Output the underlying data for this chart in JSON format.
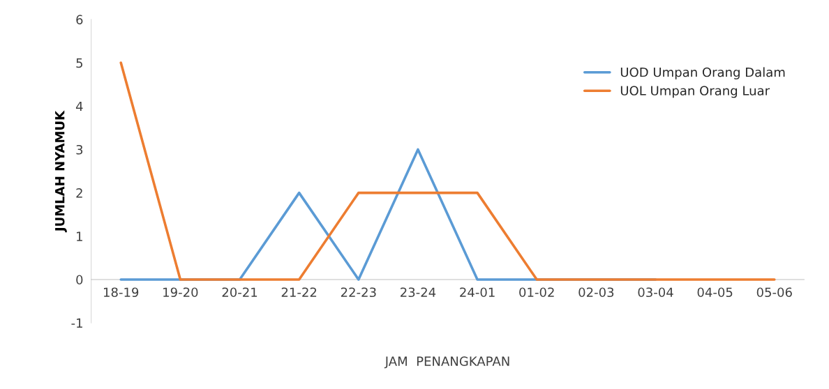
{
  "chart_data": {
    "type": "line",
    "xlabel": "JAM  PENANGKAPAN",
    "ylabel": "JUMLAH NYAMUK",
    "categories": [
      "18-19",
      "19-20",
      "20-21",
      "21-22",
      "22-23",
      "23-24",
      "24-01",
      "01-02",
      "02-03",
      "03-04",
      "04-05",
      "05-06"
    ],
    "series": [
      {
        "name": "UOD Umpan Orang Dalam",
        "color": "#5b9bd5",
        "values": [
          0,
          0,
          0,
          2,
          0,
          3,
          0,
          0,
          0,
          0,
          null,
          null
        ]
      },
      {
        "name": "UOL Umpan Orang Luar",
        "color": "#ed7d31",
        "values": [
          5,
          0,
          0,
          0,
          2,
          2,
          2,
          0,
          0,
          0,
          0,
          0
        ]
      }
    ],
    "ylim": [
      -1,
      6
    ],
    "yticks": [
      -1,
      0,
      1,
      2,
      3,
      4,
      5,
      6
    ],
    "grid": false,
    "legend": "top right",
    "marker": "none",
    "line_style": "solid"
  }
}
